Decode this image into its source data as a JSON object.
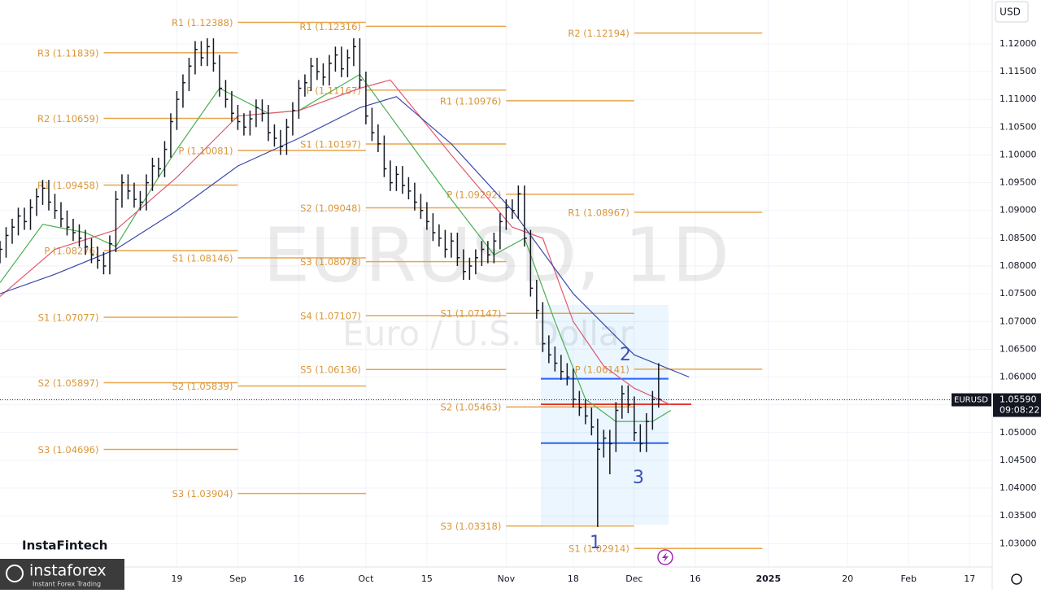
{
  "chart_data": {
    "type": "ohlc",
    "title": "EURUSD, 1D",
    "subtitle": "Euro / U.S. Dollar",
    "currency": "USD",
    "symbol": "EURUSD",
    "last_price": {
      "value": 1.0559,
      "label": "1.05590"
    },
    "countdown": "09:08:22",
    "color": "#131722",
    "x": [
      -29,
      -28,
      -27,
      -26,
      -25,
      -24,
      -23,
      -22,
      -21,
      -20,
      -19,
      -18,
      -17,
      -16,
      -15,
      -14,
      -13,
      -12,
      -11,
      -10,
      -9,
      -8,
      -7,
      -6,
      -5,
      -4,
      -3,
      -2,
      -1,
      0,
      1,
      2,
      3,
      4,
      5,
      6,
      7,
      8,
      9,
      10,
      11,
      12,
      13,
      14,
      15,
      16,
      17,
      18,
      19,
      20,
      21,
      22,
      23,
      24,
      25,
      26,
      27,
      28,
      29,
      30,
      31,
      32,
      33,
      34,
      35,
      36,
      37,
      38,
      39,
      40,
      41,
      42,
      43,
      44,
      45,
      46,
      47,
      48,
      49,
      50,
      51,
      52,
      53,
      54,
      55,
      56,
      57,
      58,
      59,
      60,
      61,
      62,
      63,
      64,
      65,
      66,
      67,
      68,
      69,
      70,
      71,
      72,
      73,
      74,
      75,
      76,
      77,
      78,
      79
    ],
    "high": [
      1.0845,
      1.087,
      1.0885,
      1.0905,
      1.0905,
      1.092,
      1.094,
      1.0955,
      1.0955,
      1.093,
      1.0915,
      1.09,
      1.0885,
      1.0875,
      1.0865,
      1.085,
      1.0835,
      1.0825,
      1.0855,
      1.0935,
      1.0965,
      1.0965,
      1.095,
      1.0935,
      1.0965,
      1.0995,
      1.0995,
      1.1025,
      1.1075,
      1.1115,
      1.1145,
      1.1175,
      1.1205,
      1.1205,
      1.121,
      1.121,
      1.118,
      1.1135,
      1.1115,
      1.109,
      1.1075,
      1.108,
      1.11,
      1.11,
      1.109,
      1.1055,
      1.1045,
      1.1065,
      1.1095,
      1.1135,
      1.1145,
      1.1175,
      1.1175,
      1.1165,
      1.118,
      1.1195,
      1.1195,
      1.119,
      1.121,
      1.121,
      1.115,
      1.1085,
      1.1055,
      1.1035,
      1.099,
      1.098,
      1.098,
      1.096,
      1.095,
      1.093,
      1.0915,
      1.0895,
      1.0875,
      1.0865,
      1.086,
      1.086,
      1.083,
      1.0815,
      1.083,
      1.0845,
      1.0845,
      1.086,
      1.0895,
      1.092,
      1.092,
      1.0945,
      1.0945,
      1.0865,
      1.0775,
      1.0735,
      1.0675,
      1.0655,
      1.064,
      1.0625,
      1.0615,
      1.0575,
      1.056,
      1.0545,
      1.0525,
      1.0505,
      1.0505,
      1.0555,
      1.0585,
      1.0585,
      1.0565,
      1.0515,
      1.0535,
      1.0575,
      1.0625
    ],
    "low": [
      1.0805,
      1.0815,
      1.084,
      1.0855,
      1.0865,
      1.0865,
      1.089,
      1.091,
      1.09,
      1.0885,
      1.087,
      1.0855,
      1.0845,
      1.0835,
      1.082,
      1.0805,
      1.0795,
      1.0785,
      1.0785,
      1.0825,
      1.0905,
      1.092,
      1.0905,
      1.09,
      1.09,
      1.0935,
      1.096,
      1.096,
      1.0995,
      1.1045,
      1.1085,
      1.1115,
      1.1145,
      1.116,
      1.116,
      1.115,
      1.1105,
      1.1085,
      1.106,
      1.1045,
      1.1035,
      1.1035,
      1.105,
      1.106,
      1.1025,
      1.1015,
      1.1,
      1.1,
      1.1035,
      1.1065,
      1.1105,
      1.1115,
      1.1135,
      1.1125,
      1.1125,
      1.115,
      1.114,
      1.114,
      1.116,
      1.112,
      1.1055,
      1.1025,
      1.1005,
      1.096,
      1.0935,
      1.0935,
      1.093,
      1.092,
      1.09,
      1.0885,
      1.0865,
      1.0845,
      1.0835,
      1.0815,
      1.0815,
      1.08,
      1.0775,
      1.0775,
      1.0785,
      1.08,
      1.0805,
      1.0805,
      1.083,
      1.0865,
      1.0885,
      1.0885,
      1.0835,
      1.0745,
      1.0705,
      1.0645,
      1.0625,
      1.061,
      1.0595,
      1.0585,
      1.0545,
      1.053,
      1.0515,
      1.0495,
      1.033,
      1.0455,
      1.0425,
      1.0465,
      1.0525,
      1.0535,
      1.0485,
      1.0465,
      1.0465,
      1.0505,
      1.0545
    ],
    "close": [
      1.083,
      1.0855,
      1.087,
      1.089,
      1.088,
      1.0905,
      1.0925,
      1.094,
      1.0915,
      1.09,
      1.0885,
      1.087,
      1.086,
      1.085,
      1.0835,
      1.082,
      1.081,
      1.08,
      1.084,
      1.092,
      1.095,
      1.0935,
      1.092,
      1.0915,
      1.095,
      1.098,
      1.0975,
      1.101,
      1.106,
      1.11,
      1.113,
      1.116,
      1.119,
      1.1175,
      1.1195,
      1.1165,
      1.112,
      1.11,
      1.1075,
      1.106,
      1.105,
      1.1065,
      1.1085,
      1.1075,
      1.104,
      1.103,
      1.1015,
      1.105,
      1.108,
      1.112,
      1.113,
      1.116,
      1.115,
      1.114,
      1.1165,
      1.118,
      1.1155,
      1.1175,
      1.1195,
      1.1135,
      1.107,
      1.104,
      1.102,
      1.0975,
      1.095,
      1.0965,
      1.0945,
      1.0935,
      1.0915,
      1.09,
      1.088,
      1.086,
      1.085,
      1.083,
      1.0845,
      1.0815,
      1.079,
      1.08,
      1.0815,
      1.083,
      1.082,
      1.0845,
      1.088,
      1.0905,
      1.09,
      1.093,
      1.085,
      1.076,
      1.072,
      1.066,
      1.064,
      1.0625,
      1.061,
      1.06,
      1.056,
      1.0545,
      1.053,
      1.051,
      1.047,
      1.049,
      1.048,
      1.054,
      1.057,
      1.055,
      1.05,
      1.048,
      1.052,
      1.056,
      1.056
    ],
    "ma": [
      {
        "color": "#4caf50",
        "x": [
          -29,
          -22,
          -15,
          -10,
          -3,
          0,
          7,
          15,
          20,
          30,
          35,
          45,
          52,
          57,
          62,
          67,
          72,
          78,
          81
        ],
        "values": [
          1.077,
          1.0875,
          1.086,
          1.0835,
          1.096,
          1.101,
          1.112,
          1.1075,
          1.108,
          1.1145,
          1.107,
          1.092,
          1.082,
          1.085,
          1.07,
          1.056,
          1.052,
          1.052,
          1.054
        ]
      },
      {
        "color": "#e05a6d",
        "x": [
          -29,
          -20,
          -10,
          0,
          10,
          20,
          30,
          35,
          45,
          55,
          60,
          65,
          70,
          75,
          81
        ],
        "values": [
          1.0745,
          1.083,
          1.0865,
          1.096,
          1.107,
          1.108,
          1.112,
          1.1135,
          1.1,
          1.087,
          1.085,
          1.07,
          1.062,
          1.058,
          1.055
        ]
      },
      {
        "color": "#3949ab",
        "x": [
          -29,
          -20,
          -10,
          0,
          10,
          20,
          30,
          36,
          45,
          55,
          65,
          75,
          84
        ],
        "values": [
          1.075,
          1.0785,
          1.083,
          1.09,
          1.098,
          1.103,
          1.1085,
          1.1105,
          1.102,
          1.09,
          1.075,
          1.064,
          1.06
        ]
      }
    ],
    "pivots": [
      {
        "start": -12,
        "end": 10,
        "levels": [
          {
            "label": "R3 (1.11839)",
            "value": 1.11839
          },
          {
            "label": "R2 (1.10659)",
            "value": 1.10659
          },
          {
            "label": "R1 (1.09458)",
            "value": 1.09458
          },
          {
            "label": "P (1.08276)",
            "value": 1.08276
          },
          {
            "label": "S1 (1.07077)",
            "value": 1.07077
          },
          {
            "label": "S2 (1.05897)",
            "value": 1.05897
          },
          {
            "label": "S3 (1.04696)",
            "value": 1.04696
          }
        ]
      },
      {
        "start": 10,
        "end": 31,
        "levels": [
          {
            "label": "R1 (1.12388)",
            "value": 1.12388
          },
          {
            "label": "P (1.10081)",
            "value": 1.10081
          },
          {
            "label": "S1 (1.08146)",
            "value": 1.08146
          },
          {
            "label": "S2 (1.05839)",
            "value": 1.05839
          },
          {
            "label": "S3 (1.03904)",
            "value": 1.03904
          }
        ]
      },
      {
        "start": 31,
        "end": 54,
        "levels": [
          {
            "label": "R1 (1.12316)",
            "value": 1.12316
          },
          {
            "label": "P (1.11167)",
            "value": 1.11167
          },
          {
            "label": "S1 (1.10197)",
            "value": 1.10197
          },
          {
            "label": "S2 (1.09048)",
            "value": 1.09048
          },
          {
            "label": "S3 (1.08078)",
            "value": 1.08078
          },
          {
            "label": "S4 (1.07107)",
            "value": 1.07107
          },
          {
            "label": "S5 (1.06136)",
            "value": 1.06136
          }
        ]
      },
      {
        "start": 54,
        "end": 75,
        "levels": [
          {
            "label": "R1 (1.10976)",
            "value": 1.10976
          },
          {
            "label": "P (1.09292)",
            "value": 1.09292
          },
          {
            "label": "S1 (1.07147)",
            "value": 1.07147
          },
          {
            "label": "S2 (1.05463)",
            "value": 1.05463
          },
          {
            "label": "S3 (1.03318)",
            "value": 1.03318
          }
        ]
      },
      {
        "start": 75,
        "end": 96,
        "levels": [
          {
            "label": "R2 (1.12194)",
            "value": 1.12194
          },
          {
            "label": "R1 (1.08967)",
            "value": 1.08967
          },
          {
            "label": "P (1.06141)",
            "value": 1.06141
          },
          {
            "label": "S1 (1.02914)",
            "value": 1.02914
          }
        ]
      }
    ],
    "profile_lines": [
      {
        "value": 1.0597,
        "color": "#2962ff"
      },
      {
        "value": 1.0551,
        "color": "#e53935"
      },
      {
        "value": 1.0481,
        "color": "#2962ff"
      }
    ],
    "annotations": [
      "1",
      "2",
      "3"
    ],
    "xlim": [
      -29,
      133.7
    ],
    "ylim": [
      1.0258,
      1.1279
    ],
    "xticks": [
      {
        "value": 0,
        "label": "19"
      },
      {
        "value": 10,
        "label": "Sep"
      },
      {
        "value": 20,
        "label": "16"
      },
      {
        "value": 31,
        "label": "Oct"
      },
      {
        "value": 41,
        "label": "15"
      },
      {
        "value": 54,
        "label": "Nov"
      },
      {
        "value": 65,
        "label": "18"
      },
      {
        "value": 75,
        "label": "Dec"
      },
      {
        "value": 85,
        "label": "16"
      },
      {
        "value": 97,
        "label": "2025"
      },
      {
        "value": 110,
        "label": "20"
      },
      {
        "value": 120,
        "label": "Feb"
      },
      {
        "value": 130,
        "label": "17"
      }
    ],
    "yticks": [
      {
        "value": 1.03,
        "label": "1.03000"
      },
      {
        "value": 1.035,
        "label": "1.03500"
      },
      {
        "value": 1.04,
        "label": "1.04000"
      },
      {
        "value": 1.045,
        "label": "1.04500"
      },
      {
        "value": 1.05,
        "label": "1.05000"
      },
      {
        "value": 1.055,
        "label": "1.05500"
      },
      {
        "value": 1.06,
        "label": "1.06000"
      },
      {
        "value": 1.065,
        "label": "1.06500"
      },
      {
        "value": 1.07,
        "label": "1.07000"
      },
      {
        "value": 1.075,
        "label": "1.07500"
      },
      {
        "value": 1.08,
        "label": "1.08000"
      },
      {
        "value": 1.085,
        "label": "1.08500"
      },
      {
        "value": 1.09,
        "label": "1.09000"
      },
      {
        "value": 1.095,
        "label": "1.09500"
      },
      {
        "value": 1.1,
        "label": "1.10000"
      },
      {
        "value": 1.105,
        "label": "1.10500"
      },
      {
        "value": 1.11,
        "label": "1.11000"
      },
      {
        "value": 1.115,
        "label": "1.11500"
      },
      {
        "value": 1.12,
        "label": "1.12000"
      }
    ],
    "grid": true
  },
  "branding": {
    "instafintech": "InstaFintech",
    "instaforex": "instaforex",
    "tagline": "Instant Forex Trading"
  }
}
